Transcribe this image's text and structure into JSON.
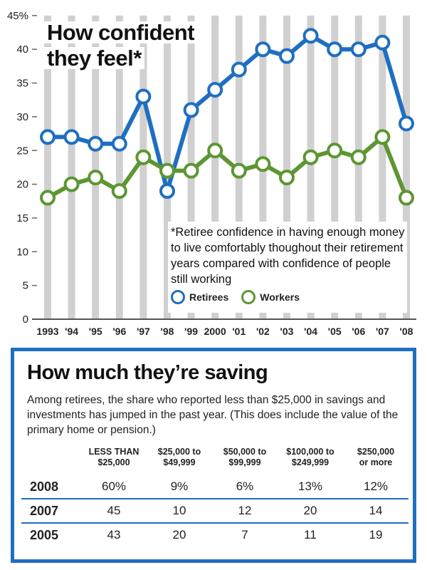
{
  "chart_data": {
    "type": "line",
    "title": "How confident they feel*",
    "title_lines": [
      "How confident",
      "they feel*"
    ],
    "x": [
      "1993",
      "'94",
      "'95",
      "'96",
      "'97",
      "'98",
      "'99",
      "2000",
      "'01",
      "'02",
      "'03",
      "'04",
      "'05",
      "'06",
      "'07",
      "'08"
    ],
    "y_ticks": [
      "0",
      "5",
      "10",
      "15",
      "20",
      "25",
      "30",
      "35",
      "40",
      "45%"
    ],
    "ylim": [
      0,
      45
    ],
    "grid": "vertical",
    "legend_position": "bottom-right",
    "footnote": "*Retiree confidence in having enough money to live comfortably thoughout their retirement years compared with confidence of people still working",
    "series": [
      {
        "name": "Retirees",
        "color": "#1f6fc1",
        "values": [
          27,
          27,
          26,
          26,
          33,
          19,
          31,
          34,
          37,
          40,
          39,
          42,
          40,
          40,
          41,
          29
        ]
      },
      {
        "name": "Workers",
        "color": "#5d9632",
        "values": [
          18,
          20,
          21,
          19,
          24,
          22,
          22,
          25,
          22,
          23,
          21,
          24,
          25,
          24,
          27,
          18
        ]
      }
    ]
  },
  "savings": {
    "title": "How much they’re saving",
    "description": "Among retirees, the share who reported less than $25,000 in savings and investments has jumped in the past year. (This does include the value of the primary home or pension.)",
    "headers": [
      [
        "LESS THAN",
        "$25,000"
      ],
      [
        "$25,000 to",
        "$49,999"
      ],
      [
        "$50,000 to",
        "$99,999"
      ],
      [
        "$100,000 to",
        "$249,999"
      ],
      [
        "$250,000",
        "or more"
      ]
    ],
    "rows": [
      {
        "year": "2008",
        "values": [
          "60%",
          "9%",
          "6%",
          "13%",
          "12%"
        ]
      },
      {
        "year": "2007",
        "values": [
          "45",
          "10",
          "12",
          "20",
          "14"
        ]
      },
      {
        "year": "2005",
        "values": [
          "43",
          "20",
          "7",
          "11",
          "19"
        ]
      }
    ]
  }
}
